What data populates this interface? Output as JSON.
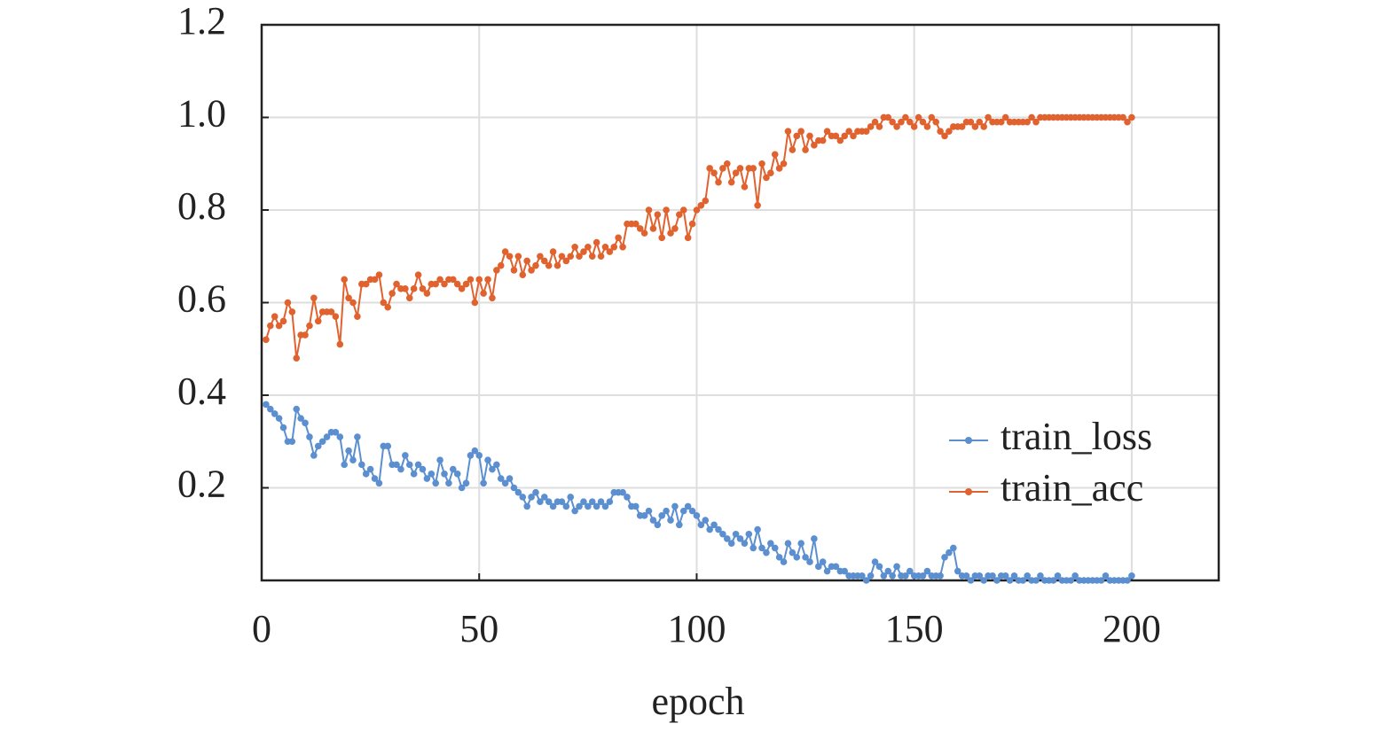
{
  "chart_data": {
    "type": "line",
    "xlabel": "epoch",
    "x": [
      1,
      2,
      3,
      4,
      5,
      6,
      7,
      8,
      9,
      10,
      11,
      12,
      13,
      14,
      15,
      16,
      17,
      18,
      19,
      20,
      21,
      22,
      23,
      24,
      25,
      26,
      27,
      28,
      29,
      30,
      31,
      32,
      33,
      34,
      35,
      36,
      37,
      38,
      39,
      40,
      41,
      42,
      43,
      44,
      45,
      46,
      47,
      48,
      49,
      50,
      51,
      52,
      53,
      54,
      55,
      56,
      57,
      58,
      59,
      60,
      61,
      62,
      63,
      64,
      65,
      66,
      67,
      68,
      69,
      70,
      71,
      72,
      73,
      74,
      75,
      76,
      77,
      78,
      79,
      80,
      81,
      82,
      83,
      84,
      85,
      86,
      87,
      88,
      89,
      90,
      91,
      92,
      93,
      94,
      95,
      96,
      97,
      98,
      99,
      100,
      101,
      102,
      103,
      104,
      105,
      106,
      107,
      108,
      109,
      110,
      111,
      112,
      113,
      114,
      115,
      116,
      117,
      118,
      119,
      120,
      121,
      122,
      123,
      124,
      125,
      126,
      127,
      128,
      129,
      130,
      131,
      132,
      133,
      134,
      135,
      136,
      137,
      138,
      139,
      140,
      141,
      142,
      143,
      144,
      145,
      146,
      147,
      148,
      149,
      150,
      151,
      152,
      153,
      154,
      155,
      156,
      157,
      158,
      159,
      160,
      161,
      162,
      163,
      164,
      165,
      166,
      167,
      168,
      169,
      170,
      171,
      172,
      173,
      174,
      175,
      176,
      177,
      178,
      179,
      180,
      181,
      182,
      183,
      184,
      185,
      186,
      187,
      188,
      189,
      190,
      191,
      192,
      193,
      194,
      195,
      196,
      197,
      198,
      199,
      200
    ],
    "series": [
      {
        "name": "train_loss",
        "color": "#5b8fcf",
        "values": [
          0.38,
          0.37,
          0.36,
          0.35,
          0.33,
          0.3,
          0.3,
          0.37,
          0.35,
          0.34,
          0.31,
          0.27,
          0.29,
          0.3,
          0.31,
          0.32,
          0.32,
          0.31,
          0.25,
          0.28,
          0.26,
          0.31,
          0.25,
          0.23,
          0.24,
          0.22,
          0.21,
          0.29,
          0.29,
          0.25,
          0.25,
          0.24,
          0.27,
          0.25,
          0.23,
          0.25,
          0.24,
          0.22,
          0.23,
          0.21,
          0.26,
          0.23,
          0.21,
          0.24,
          0.23,
          0.2,
          0.21,
          0.27,
          0.28,
          0.27,
          0.21,
          0.26,
          0.24,
          0.25,
          0.22,
          0.21,
          0.22,
          0.2,
          0.19,
          0.18,
          0.16,
          0.18,
          0.19,
          0.17,
          0.18,
          0.17,
          0.16,
          0.17,
          0.17,
          0.16,
          0.18,
          0.15,
          0.16,
          0.17,
          0.16,
          0.17,
          0.16,
          0.17,
          0.16,
          0.17,
          0.19,
          0.19,
          0.19,
          0.18,
          0.16,
          0.16,
          0.14,
          0.14,
          0.15,
          0.13,
          0.12,
          0.14,
          0.15,
          0.13,
          0.16,
          0.12,
          0.15,
          0.16,
          0.15,
          0.14,
          0.12,
          0.13,
          0.11,
          0.12,
          0.11,
          0.1,
          0.09,
          0.08,
          0.1,
          0.09,
          0.08,
          0.1,
          0.07,
          0.11,
          0.07,
          0.06,
          0.08,
          0.07,
          0.05,
          0.04,
          0.08,
          0.06,
          0.05,
          0.08,
          0.05,
          0.04,
          0.09,
          0.03,
          0.04,
          0.02,
          0.03,
          0.03,
          0.02,
          0.02,
          0.01,
          0.01,
          0.01,
          0.01,
          0.0,
          0.01,
          0.04,
          0.03,
          0.01,
          0.02,
          0.01,
          0.03,
          0.01,
          0.01,
          0.02,
          0.01,
          0.01,
          0.01,
          0.02,
          0.01,
          0.01,
          0.01,
          0.05,
          0.06,
          0.07,
          0.02,
          0.01,
          0.01,
          0.0,
          0.01,
          0.01,
          0.0,
          0.01,
          0.01,
          0.0,
          0.01,
          0.01,
          0.0,
          0.01,
          0.0,
          0.0,
          0.01,
          0.0,
          0.0,
          0.01,
          0.0,
          0.0,
          0.0,
          0.01,
          0.0,
          0.0,
          0.0,
          0.01,
          0.0,
          0.0,
          0.0,
          0.0,
          0.0,
          0.0,
          0.01,
          0.0,
          0.0,
          0.0,
          0.0,
          0.0,
          0.01
        ]
      },
      {
        "name": "train_acc",
        "color": "#e0622f",
        "values": [
          0.52,
          0.55,
          0.57,
          0.55,
          0.56,
          0.6,
          0.58,
          0.48,
          0.53,
          0.53,
          0.55,
          0.61,
          0.56,
          0.58,
          0.58,
          0.58,
          0.57,
          0.51,
          0.65,
          0.61,
          0.6,
          0.57,
          0.64,
          0.64,
          0.65,
          0.65,
          0.66,
          0.6,
          0.59,
          0.62,
          0.64,
          0.63,
          0.63,
          0.61,
          0.63,
          0.66,
          0.63,
          0.62,
          0.64,
          0.64,
          0.65,
          0.64,
          0.65,
          0.65,
          0.64,
          0.63,
          0.64,
          0.65,
          0.6,
          0.65,
          0.62,
          0.65,
          0.61,
          0.67,
          0.68,
          0.71,
          0.7,
          0.67,
          0.7,
          0.66,
          0.69,
          0.67,
          0.68,
          0.7,
          0.69,
          0.68,
          0.71,
          0.68,
          0.7,
          0.69,
          0.7,
          0.72,
          0.7,
          0.71,
          0.72,
          0.7,
          0.73,
          0.7,
          0.72,
          0.71,
          0.72,
          0.74,
          0.72,
          0.77,
          0.77,
          0.77,
          0.76,
          0.75,
          0.8,
          0.76,
          0.79,
          0.74,
          0.8,
          0.75,
          0.76,
          0.79,
          0.8,
          0.74,
          0.77,
          0.8,
          0.81,
          0.82,
          0.89,
          0.88,
          0.86,
          0.89,
          0.9,
          0.86,
          0.88,
          0.89,
          0.85,
          0.89,
          0.89,
          0.81,
          0.9,
          0.87,
          0.88,
          0.92,
          0.89,
          0.9,
          0.97,
          0.93,
          0.96,
          0.97,
          0.93,
          0.96,
          0.94,
          0.95,
          0.95,
          0.97,
          0.96,
          0.96,
          0.95,
          0.96,
          0.97,
          0.96,
          0.97,
          0.97,
          0.97,
          0.98,
          0.99,
          0.98,
          1.0,
          1.0,
          0.99,
          0.98,
          0.99,
          1.0,
          0.99,
          0.98,
          1.0,
          0.99,
          0.98,
          1.0,
          0.99,
          0.97,
          0.96,
          0.97,
          0.98,
          0.98,
          0.98,
          0.99,
          0.99,
          0.98,
          0.99,
          0.98,
          1.0,
          0.99,
          0.99,
          0.99,
          1.0,
          0.99,
          0.99,
          0.99,
          0.99,
          0.99,
          1.0,
          0.99,
          1.0,
          1.0,
          1.0,
          1.0,
          1.0,
          1.0,
          1.0,
          1.0,
          1.0,
          1.0,
          1.0,
          1.0,
          1.0,
          1.0,
          1.0,
          1.0,
          1.0,
          1.0,
          1.0,
          1.0,
          0.99,
          1.0
        ]
      }
    ],
    "xlim": [
      0,
      220
    ],
    "xticks": [
      0,
      50,
      100,
      150,
      200
    ],
    "ylim": [
      0,
      1.2
    ],
    "yticks": [
      0.2,
      0.4,
      0.6,
      0.8,
      {
        "value": 1,
        "label": "1.0"
      },
      1.2
    ],
    "grid": true,
    "legend": "lower right"
  }
}
